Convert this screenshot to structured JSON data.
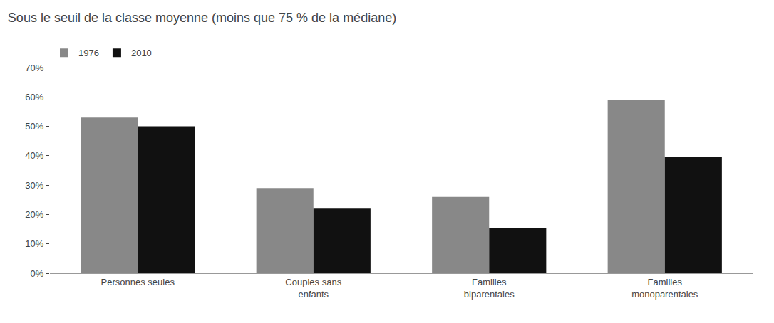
{
  "chart_data": {
    "type": "bar",
    "title": "Sous le seuil de la classe moyenne (moins que 75 % de la médiane)",
    "categories": [
      "Personnes seules",
      "Couples sans\nenfants",
      "Familles\nbiparentales",
      "Familles\nmonoparentales"
    ],
    "series": [
      {
        "name": "1976",
        "color": "#888888",
        "values": [
          0.53,
          0.29,
          0.26,
          0.59
        ]
      },
      {
        "name": "2010",
        "color": "#111111",
        "values": [
          0.5,
          0.22,
          0.155,
          0.395
        ]
      }
    ],
    "ylim": [
      0,
      0.7
    ],
    "yticks": [
      {
        "value": 0.0,
        "label": "0%"
      },
      {
        "value": 0.1,
        "label": "10%"
      },
      {
        "value": 0.2,
        "label": "20%"
      },
      {
        "value": 0.3,
        "label": "30%"
      },
      {
        "value": 0.4,
        "label": "40%"
      },
      {
        "value": 0.5,
        "label": "50%"
      },
      {
        "value": 0.6,
        "label": "60%"
      },
      {
        "value": 0.7,
        "label": "70%"
      }
    ],
    "grid": false,
    "legend": "upper left"
  }
}
